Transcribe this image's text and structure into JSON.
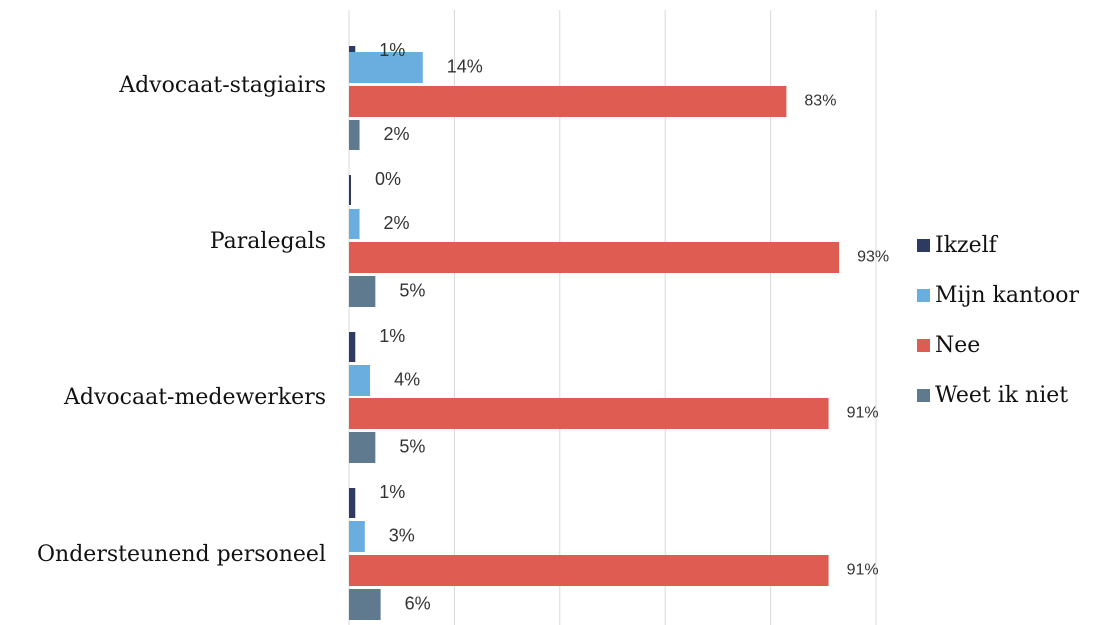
{
  "chart_data": {
    "type": "bar",
    "orientation": "horizontal",
    "categories": [
      "Advocaat-stagiairs",
      "Paralegals",
      "Advocaat-medewerkers",
      "Ondersteunend personeel"
    ],
    "series": [
      {
        "name": "Ikzelf",
        "color": "#2f3a63",
        "values": [
          1,
          0,
          1,
          1
        ],
        "labels": [
          "1%",
          "0%",
          "1%",
          "1%"
        ]
      },
      {
        "name": "Mijn kantoor",
        "color": "#6aaee0",
        "values": [
          14,
          2,
          4,
          3
        ],
        "labels": [
          "14%",
          "2%",
          "4%",
          "3%"
        ]
      },
      {
        "name": "Nee",
        "color": "#de5c52",
        "values": [
          83,
          93,
          91,
          91
        ],
        "labels": [
          "83%",
          "93%",
          "91%",
          "91%"
        ]
      },
      {
        "name": "Weet ik niet",
        "color": "#5f7a8f",
        "values": [
          2,
          5,
          5,
          6
        ],
        "labels": [
          "2%",
          "5%",
          "5%",
          "6%"
        ]
      }
    ],
    "xlim": [
      0,
      100
    ],
    "gridlines": true,
    "legend_position": "right"
  }
}
